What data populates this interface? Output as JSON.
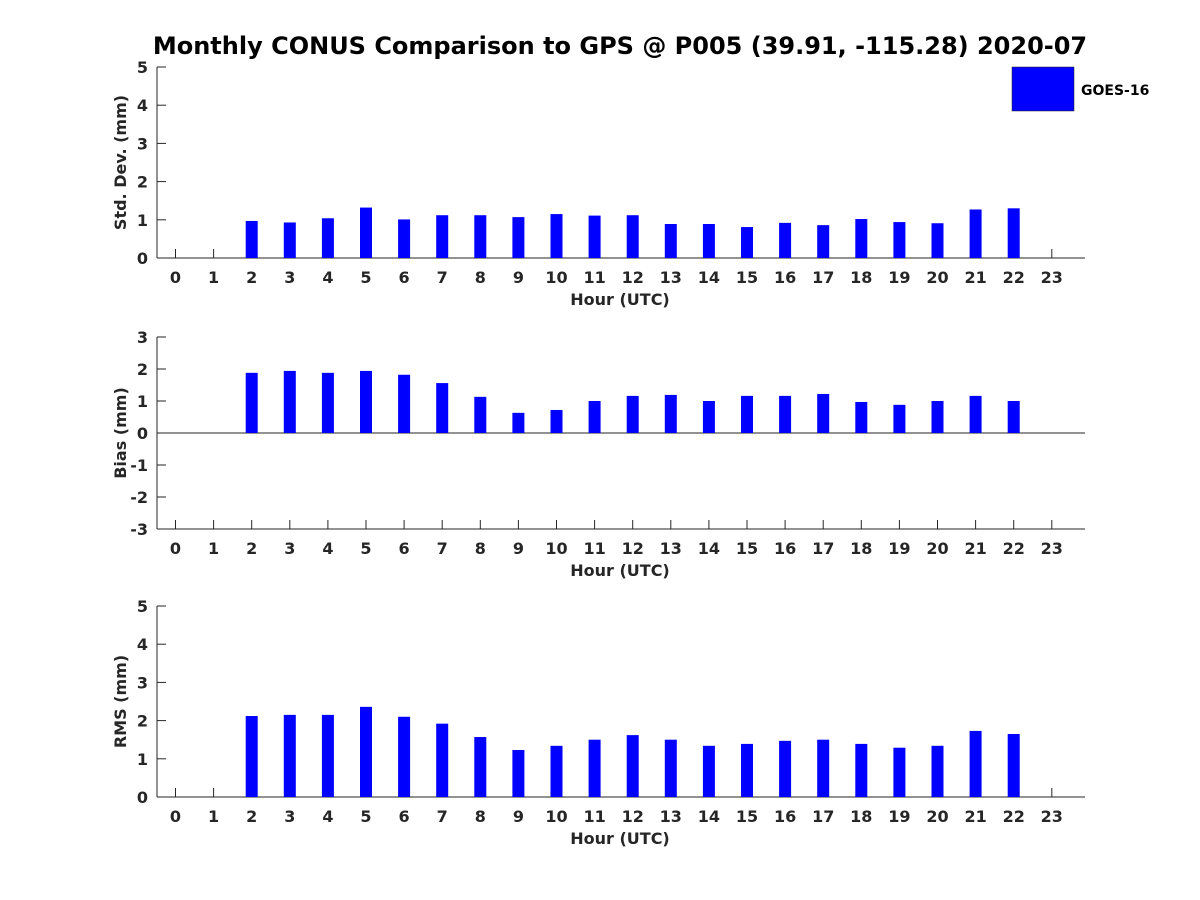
{
  "chart_data": {
    "type": "bar",
    "title": "Monthly CONUS Comparison to GPS @ P005 (39.91, -115.28) 2020-07",
    "legend": {
      "placement": "top-right",
      "entries": [
        "GOES-16"
      ]
    },
    "colors": {
      "series": "#0000ff",
      "axis": "#262626"
    },
    "categories": [
      0,
      1,
      2,
      3,
      4,
      5,
      6,
      7,
      8,
      9,
      10,
      11,
      12,
      13,
      14,
      15,
      16,
      17,
      18,
      19,
      20,
      21,
      22,
      23
    ],
    "panels": [
      {
        "id": "std",
        "ylabel": "Std. Dev. (mm)",
        "xlabel": "Hour (UTC)",
        "ylim": [
          0,
          5
        ],
        "yticks": [
          "0",
          "1",
          "2",
          "3",
          "4",
          "5"
        ],
        "grid": false,
        "series": [
          {
            "name": "GOES-16",
            "values": [
              null,
              null,
              0.97,
              0.93,
              1.04,
              1.32,
              1.01,
              1.12,
              1.12,
              1.07,
              1.15,
              1.11,
              1.12,
              0.89,
              0.89,
              0.81,
              0.92,
              0.86,
              1.02,
              0.94,
              0.91,
              1.27,
              1.3,
              null
            ]
          }
        ]
      },
      {
        "id": "bias",
        "ylabel": "Bias (mm)",
        "xlabel": "Hour (UTC)",
        "ylim": [
          -3,
          3
        ],
        "yticks": [
          "-3",
          "-2",
          "-1",
          "0",
          "1",
          "2",
          "3"
        ],
        "grid": false,
        "series": [
          {
            "name": "GOES-16",
            "values": [
              null,
              null,
              1.88,
              1.94,
              1.88,
              1.94,
              1.82,
              1.56,
              1.13,
              0.63,
              0.72,
              1.0,
              1.16,
              1.19,
              1.0,
              1.16,
              1.16,
              1.22,
              0.97,
              0.88,
              1.0,
              1.16,
              1.0,
              null
            ]
          }
        ]
      },
      {
        "id": "rms",
        "ylabel": "RMS (mm)",
        "xlabel": "Hour (UTC)",
        "ylim": [
          0,
          5
        ],
        "yticks": [
          "0",
          "1",
          "2",
          "3",
          "4",
          "5"
        ],
        "grid": false,
        "series": [
          {
            "name": "GOES-16",
            "values": [
              null,
              null,
              2.12,
              2.15,
              2.15,
              2.36,
              2.1,
              1.92,
              1.57,
              1.23,
              1.34,
              1.5,
              1.62,
              1.5,
              1.34,
              1.39,
              1.47,
              1.5,
              1.39,
              1.29,
              1.34,
              1.73,
              1.65,
              null
            ]
          }
        ]
      }
    ]
  }
}
